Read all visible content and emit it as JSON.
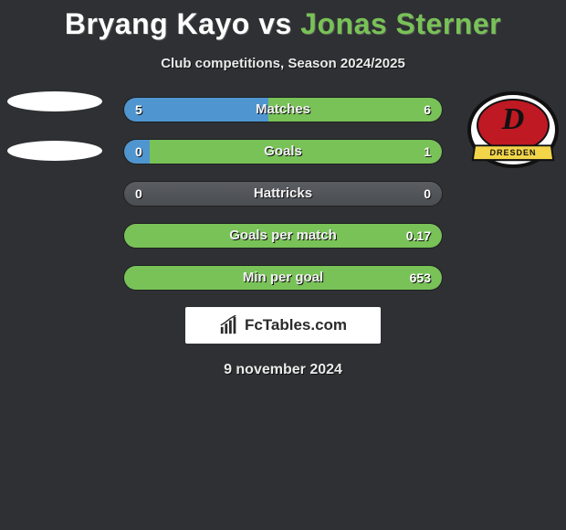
{
  "title": {
    "p1": "Bryang Kayo",
    "vs": "vs",
    "p2": "Jonas Sterner"
  },
  "subtitle": "Club competitions, Season 2024/2025",
  "colors": {
    "p1": "#4f96d1",
    "p2": "#78c257"
  },
  "left_badges": {
    "count": 2
  },
  "right_badge": {
    "letter": "D",
    "ribbon": "DRESDEN"
  },
  "rows": [
    {
      "label": "Matches",
      "left": "5",
      "right": "6",
      "pctLeft": 45.5,
      "pctRight": 54.5
    },
    {
      "label": "Goals",
      "left": "0",
      "right": "1",
      "pctLeft": 8,
      "pctRight": 92
    },
    {
      "label": "Hattricks",
      "left": "0",
      "right": "0",
      "pctLeft": 0,
      "pctRight": 0
    },
    {
      "label": "Goals per match",
      "left": "",
      "right": "0.17",
      "pctLeft": 0,
      "pctRight": 100
    },
    {
      "label": "Min per goal",
      "left": "",
      "right": "653",
      "pctLeft": 0,
      "pctRight": 100
    }
  ],
  "brand": "FcTables.com",
  "date": "9 november 2024"
}
